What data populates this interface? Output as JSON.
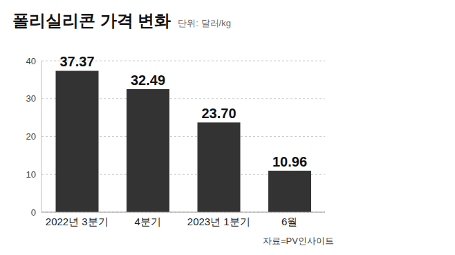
{
  "chart_data": {
    "type": "bar",
    "title": "폴리실리콘 가격 변화",
    "subtitle": "단위: 달러/kg",
    "categories": [
      "2022년 3분기",
      "4분기",
      "2023년 1분기",
      "6월"
    ],
    "values": [
      37.37,
      32.49,
      23.7,
      10.96
    ],
    "value_labels": [
      "37.37",
      "32.49",
      "23.70",
      "10.96"
    ],
    "data_labels": true,
    "color": "#333333",
    "ylim": [
      0,
      40
    ],
    "yticks": [
      0,
      10,
      20,
      30,
      40
    ],
    "grid": true,
    "annotations": [
      "자료=PV인사이트"
    ]
  }
}
